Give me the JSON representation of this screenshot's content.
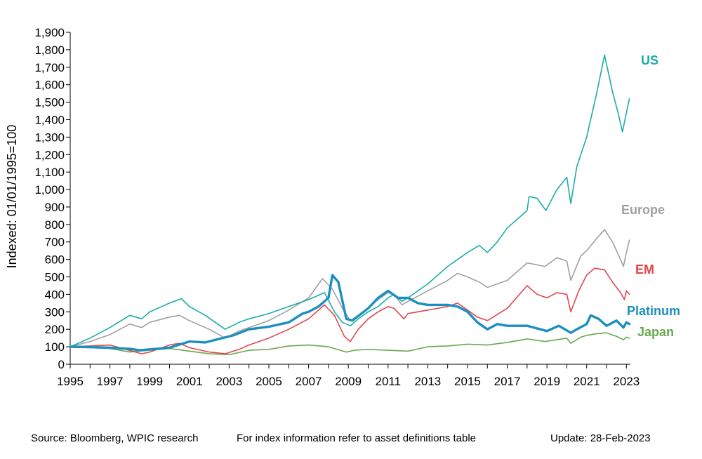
{
  "chart_data": {
    "type": "line",
    "ylabel": "Indexed: 01/01/1995=100",
    "xlabel": "",
    "ylim": [
      0,
      1900
    ],
    "y_ticks": [
      0,
      100,
      200,
      300,
      400,
      500,
      600,
      700,
      800,
      900,
      1000,
      1100,
      1200,
      1300,
      1400,
      1500,
      1600,
      1700,
      1800,
      1900
    ],
    "y_tick_labels": [
      "0",
      "100",
      "200",
      "300",
      "400",
      "500",
      "600",
      "700",
      "800",
      "900",
      "1,000",
      "1,100",
      "1,200",
      "1,300",
      "1,400",
      "1,500",
      "1,600",
      "1,700",
      "1,800",
      "1,900"
    ],
    "xlim": [
      1995,
      2023.2
    ],
    "x_ticks": [
      1995,
      1997,
      1999,
      2001,
      2003,
      2005,
      2007,
      2009,
      2011,
      2013,
      2015,
      2017,
      2019,
      2021,
      2023
    ],
    "x_tick_labels": [
      "1995",
      "1997",
      "1999",
      "2001",
      "2003",
      "2005",
      "2007",
      "2009",
      "2011",
      "2013",
      "2015",
      "2017",
      "2019",
      "2021",
      "2023"
    ],
    "grid": false,
    "series": [
      {
        "name": "US",
        "color": "#1aada6",
        "width": 1.6,
        "x": [
          1995,
          1996,
          1997,
          1998,
          1998.6,
          1999,
          2000,
          2000.6,
          2001,
          2001.8,
          2002.8,
          2003.5,
          2004,
          2005,
          2006,
          2007,
          2007.8,
          2008.3,
          2008.7,
          2009.1,
          2009.5,
          2010,
          2010.5,
          2011,
          2011.3,
          2011.7,
          2012,
          2013,
          2014,
          2015,
          2015.6,
          2016,
          2016.5,
          2017,
          2018,
          2018.1,
          2018.5,
          2018.95,
          2019.5,
          2020,
          2020.2,
          2020.5,
          2021,
          2021.5,
          2021.9,
          2022.3,
          2022.6,
          2022.8,
          2023,
          2023.15
        ],
        "y": [
          100,
          150,
          210,
          280,
          260,
          300,
          350,
          375,
          330,
          280,
          200,
          240,
          260,
          290,
          330,
          370,
          410,
          300,
          240,
          220,
          260,
          300,
          330,
          380,
          400,
          360,
          380,
          460,
          560,
          640,
          680,
          640,
          700,
          780,
          880,
          960,
          950,
          880,
          1000,
          1070,
          920,
          1130,
          1300,
          1550,
          1770,
          1560,
          1430,
          1330,
          1440,
          1520
        ]
      },
      {
        "name": "Europe",
        "color": "#a0a0a0",
        "width": 1.6,
        "x": [
          1995,
          1996,
          1997,
          1998,
          1998.6,
          1999,
          2000,
          2000.5,
          2001,
          2002,
          2002.8,
          2003.5,
          2004,
          2005,
          2006,
          2007,
          2007.7,
          2008.2,
          2008.7,
          2009.1,
          2009.5,
          2010,
          2010.5,
          2011,
          2011.3,
          2011.7,
          2012,
          2013,
          2014,
          2014.5,
          2015,
          2015.6,
          2016,
          2017,
          2018,
          2018.9,
          2019.5,
          2020,
          2020.2,
          2020.7,
          2021,
          2021.5,
          2021.9,
          2022.3,
          2022.7,
          2022.85,
          2023,
          2023.15
        ],
        "y": [
          100,
          130,
          170,
          230,
          210,
          240,
          270,
          280,
          250,
          200,
          150,
          190,
          210,
          250,
          310,
          380,
          490,
          430,
          320,
          250,
          280,
          320,
          370,
          410,
          400,
          340,
          360,
          420,
          480,
          520,
          500,
          470,
          440,
          480,
          580,
          560,
          610,
          590,
          480,
          620,
          650,
          720,
          770,
          700,
          600,
          560,
          640,
          710
        ]
      },
      {
        "name": "EM",
        "color": "#e0474c",
        "width": 1.6,
        "x": [
          1995,
          1996,
          1997,
          1997.8,
          1998.6,
          1999,
          2000,
          2000.5,
          2001,
          2002,
          2002.8,
          2003.5,
          2004,
          2005,
          2006,
          2007,
          2007.8,
          2008.3,
          2008.8,
          2009.1,
          2009.5,
          2010,
          2010.5,
          2011,
          2011.3,
          2011.8,
          2012,
          2013,
          2014,
          2014.5,
          2015,
          2015.5,
          2016,
          2017,
          2018,
          2018.5,
          2019,
          2019.5,
          2020,
          2020.2,
          2020.6,
          2021,
          2021.4,
          2021.9,
          2022.3,
          2022.7,
          2022.9,
          2023,
          2023.15
        ],
        "y": [
          100,
          105,
          110,
          85,
          60,
          70,
          110,
          120,
          95,
          70,
          60,
          85,
          110,
          150,
          200,
          260,
          340,
          280,
          160,
          130,
          200,
          260,
          300,
          330,
          320,
          260,
          290,
          310,
          330,
          350,
          310,
          270,
          250,
          320,
          450,
          400,
          380,
          410,
          400,
          300,
          420,
          510,
          550,
          540,
          470,
          410,
          370,
          420,
          400
        ]
      },
      {
        "name": "Platinum",
        "color": "#1b8fc0",
        "width": 3.4,
        "x": [
          1995,
          1996,
          1997,
          1998,
          1998.5,
          1999,
          2000,
          2001,
          2001.8,
          2002.5,
          2003.2,
          2004,
          2005,
          2006,
          2006.7,
          2007,
          2007.5,
          2008,
          2008.2,
          2008.5,
          2008.9,
          2009.2,
          2010,
          2010.5,
          2011,
          2011.5,
          2012,
          2012.5,
          2013,
          2014,
          2014.5,
          2015,
          2015.5,
          2016,
          2016.5,
          2017,
          2018,
          2019,
          2019.6,
          2020.2,
          2020.5,
          2021,
          2021.2,
          2021.6,
          2022,
          2022.5,
          2022.85,
          2023,
          2023.15
        ],
        "y": [
          100,
          98,
          95,
          88,
          80,
          85,
          95,
          130,
          125,
          145,
          165,
          200,
          215,
          240,
          290,
          300,
          330,
          380,
          510,
          470,
          260,
          250,
          320,
          380,
          420,
          380,
          380,
          350,
          340,
          340,
          330,
          300,
          240,
          200,
          230,
          220,
          220,
          190,
          220,
          180,
          200,
          230,
          280,
          260,
          220,
          250,
          210,
          240,
          230
        ]
      },
      {
        "name": "Japan",
        "color": "#6aa84f",
        "width": 1.6,
        "x": [
          1995,
          1996,
          1997,
          1998,
          1999,
          2000,
          2001,
          2002,
          2003,
          2004,
          2005,
          2006,
          2007,
          2008,
          2008.9,
          2009.3,
          2010,
          2011,
          2012,
          2013,
          2014,
          2015,
          2016,
          2017,
          2018,
          2018.9,
          2019.5,
          2020,
          2020.2,
          2020.7,
          2021,
          2021.5,
          2022,
          2022.5,
          2022.85,
          2023,
          2023.15
        ],
        "y": [
          100,
          95,
          90,
          70,
          80,
          90,
          75,
          60,
          55,
          80,
          85,
          105,
          110,
          100,
          70,
          80,
          85,
          80,
          75,
          100,
          105,
          115,
          110,
          125,
          145,
          130,
          140,
          150,
          120,
          155,
          165,
          175,
          180,
          160,
          140,
          155,
          150
        ]
      }
    ],
    "series_labels": [
      {
        "name": "US",
        "color": "#1aada6"
      },
      {
        "name": "Europe",
        "color": "#a0a0a0"
      },
      {
        "name": "EM",
        "color": "#e0474c"
      },
      {
        "name": "Platinum",
        "color": "#1b8fc0"
      },
      {
        "name": "Japan",
        "color": "#6aa84f"
      }
    ]
  },
  "footer": {
    "source": "Source: Bloomberg, WPIC research",
    "note": "For index information refer to asset definitions table",
    "update": "Update: 28-Feb-2023"
  }
}
